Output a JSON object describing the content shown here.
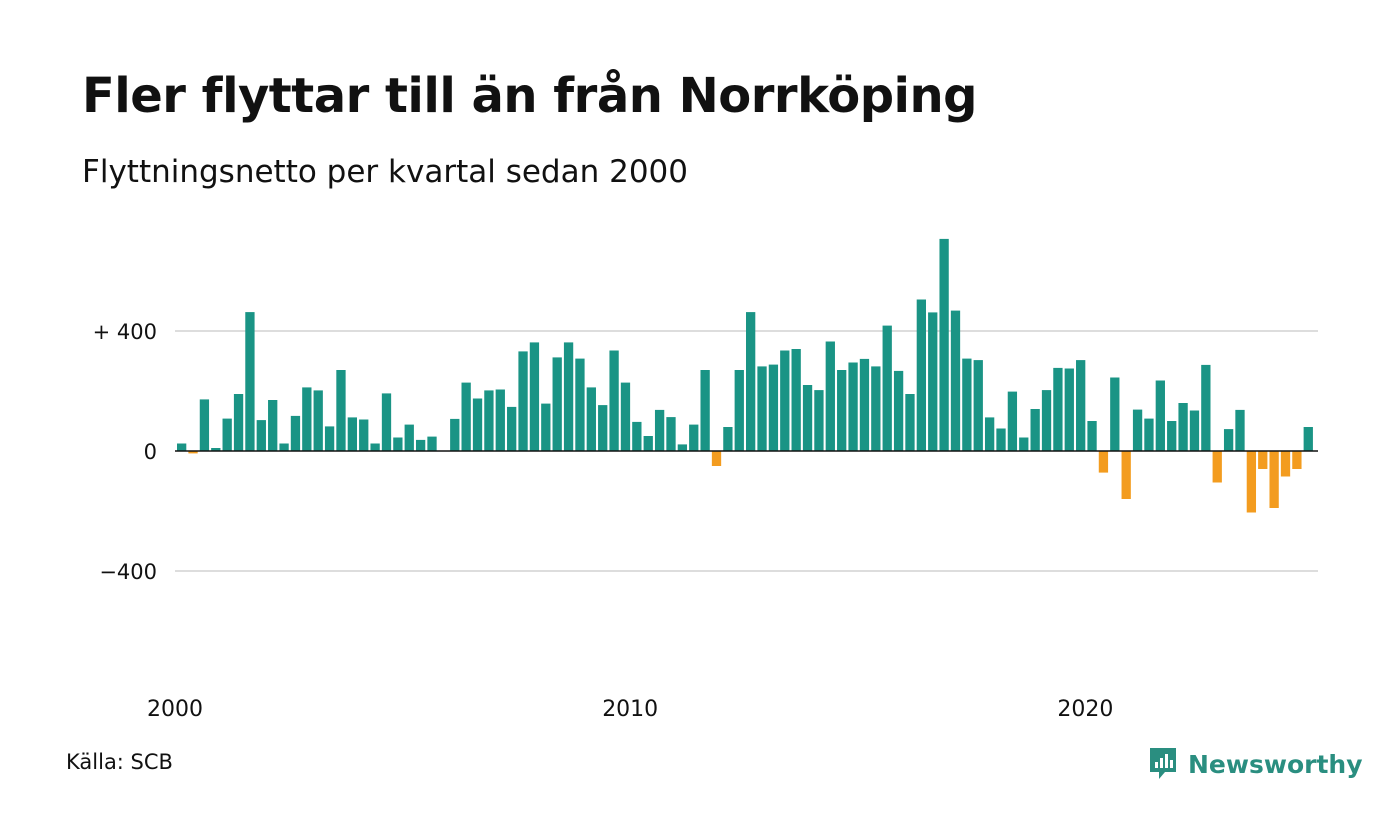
{
  "header": {
    "title": "Fler flyttar till än från Norrköping",
    "subtitle": "Flyttningsnetto per kvartal sedan 2000"
  },
  "footer": {
    "source": "Källa: SCB",
    "brand": "Newsworthy"
  },
  "colors": {
    "positive": "#1a9485",
    "negative": "#f39c1f",
    "grid": "#dddddd",
    "brand": "#2a8e80"
  },
  "chart_data": {
    "type": "bar",
    "x_start_year": 2000,
    "periods_per_year": 4,
    "ylim": [
      -800,
      800
    ],
    "yticks": [
      {
        "value": 400,
        "label": "+ 400"
      },
      {
        "value": 0,
        "label": "0"
      },
      {
        "value": -400,
        "label": "−400"
      }
    ],
    "xticks": [
      {
        "year": 2000,
        "label": "2000"
      },
      {
        "year": 2010,
        "label": "2010"
      },
      {
        "year": 2020,
        "label": "2020"
      }
    ],
    "values": [
      25,
      -8,
      172,
      10,
      108,
      190,
      463,
      103,
      170,
      25,
      117,
      212,
      202,
      82,
      270,
      112,
      105,
      25,
      192,
      45,
      88,
      37,
      48,
      0,
      107,
      228,
      175,
      202,
      205,
      147,
      332,
      362,
      158,
      312,
      362,
      308,
      212,
      153,
      335,
      228,
      97,
      50,
      137,
      113,
      22,
      88,
      270,
      -50,
      80,
      270,
      463,
      282,
      288,
      335,
      340,
      220,
      203,
      365,
      270,
      295,
      307,
      282,
      418,
      267,
      190,
      505,
      462,
      707,
      468,
      308,
      303,
      112,
      75,
      198,
      45,
      140,
      203,
      277,
      275,
      303,
      100,
      -72,
      245,
      -160,
      138,
      108,
      235,
      100,
      160,
      135,
      287,
      -105,
      73,
      137,
      -205,
      -60,
      -190,
      -85,
      -60,
      80
    ]
  }
}
